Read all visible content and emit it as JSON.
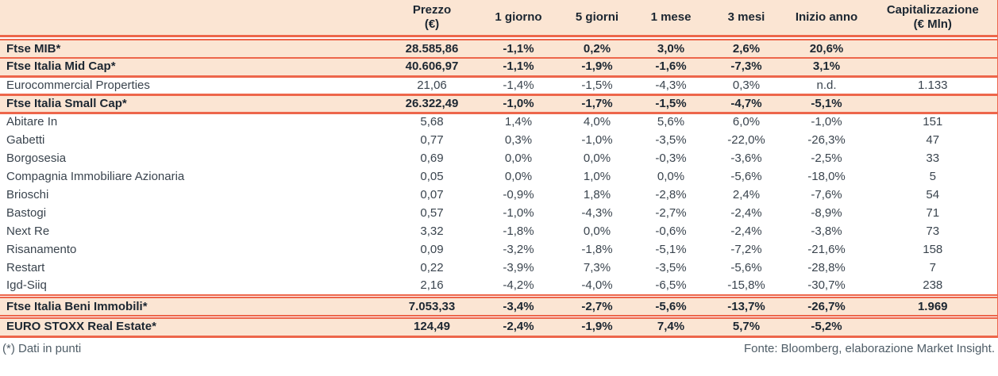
{
  "chart_data": {
    "type": "table",
    "columns": [
      {
        "label": "",
        "sublabel": ""
      },
      {
        "label": "Prezzo",
        "sublabel": "(€)"
      },
      {
        "label": "1 giorno",
        "sublabel": ""
      },
      {
        "label": "5 giorni",
        "sublabel": ""
      },
      {
        "label": "1 mese",
        "sublabel": ""
      },
      {
        "label": "3 mesi",
        "sublabel": ""
      },
      {
        "label": "Inizio anno",
        "sublabel": ""
      },
      {
        "label": "Capitalizzazione",
        "sublabel": "(€ Mln)"
      }
    ],
    "rows": [
      {
        "emphasis": true,
        "cells": [
          "Ftse MIB*",
          "28.585,86",
          "-1,1%",
          "0,2%",
          "3,0%",
          "2,6%",
          "20,6%",
          ""
        ]
      },
      {
        "emphasis": true,
        "cells": [
          "Ftse Italia Mid Cap*",
          "40.606,97",
          "-1,1%",
          "-1,9%",
          "-1,6%",
          "-7,3%",
          "3,1%",
          ""
        ]
      },
      {
        "emphasis": false,
        "cells": [
          "Eurocommercial Properties",
          "21,06",
          "-1,4%",
          "-1,5%",
          "-4,3%",
          "0,3%",
          "n.d.",
          "1.133"
        ]
      },
      {
        "emphasis": true,
        "cells": [
          "Ftse Italia Small Cap*",
          "26.322,49",
          "-1,0%",
          "-1,7%",
          "-1,5%",
          "-4,7%",
          "-5,1%",
          ""
        ]
      },
      {
        "emphasis": false,
        "cells": [
          "Abitare In",
          "5,68",
          "1,4%",
          "4,0%",
          "5,6%",
          "6,0%",
          "-1,0%",
          "151"
        ]
      },
      {
        "emphasis": false,
        "cells": [
          "Gabetti",
          "0,77",
          "0,3%",
          "-1,0%",
          "-3,5%",
          "-22,0%",
          "-26,3%",
          "47"
        ]
      },
      {
        "emphasis": false,
        "cells": [
          "Borgosesia",
          "0,69",
          "0,0%",
          "0,0%",
          "-0,3%",
          "-3,6%",
          "-2,5%",
          "33"
        ]
      },
      {
        "emphasis": false,
        "cells": [
          "Compagnia Immobiliare Azionaria",
          "0,05",
          "0,0%",
          "1,0%",
          "0,0%",
          "-5,6%",
          "-18,0%",
          "5"
        ]
      },
      {
        "emphasis": false,
        "cells": [
          "Brioschi",
          "0,07",
          "-0,9%",
          "1,8%",
          "-2,8%",
          "2,4%",
          "-7,6%",
          "54"
        ]
      },
      {
        "emphasis": false,
        "cells": [
          "Bastogi",
          "0,57",
          "-1,0%",
          "-4,3%",
          "-2,7%",
          "-2,4%",
          "-8,9%",
          "71"
        ]
      },
      {
        "emphasis": false,
        "cells": [
          "Next Re",
          "3,32",
          "-1,8%",
          "0,0%",
          "-0,6%",
          "-2,4%",
          "-3,8%",
          "73"
        ]
      },
      {
        "emphasis": false,
        "cells": [
          "Risanamento",
          "0,09",
          "-3,2%",
          "-1,8%",
          "-5,1%",
          "-7,2%",
          "-21,6%",
          "158"
        ]
      },
      {
        "emphasis": false,
        "cells": [
          "Restart",
          "0,22",
          "-3,9%",
          "7,3%",
          "-3,5%",
          "-5,6%",
          "-28,8%",
          "7"
        ]
      },
      {
        "emphasis": false,
        "cells": [
          "Igd-Siiq",
          "2,16",
          "-4,2%",
          "-4,0%",
          "-6,5%",
          "-15,8%",
          "-30,7%",
          "238"
        ]
      },
      {
        "emphasis": true,
        "cells": [
          "Ftse Italia Beni Immobili*",
          "7.053,33",
          "-3,4%",
          "-2,7%",
          "-5,6%",
          "-13,7%",
          "-26,7%",
          "1.969"
        ]
      },
      {
        "emphasis": true,
        "cells": [
          "EURO STOXX Real Estate*",
          "124,49",
          "-2,4%",
          "-1,9%",
          "7,4%",
          "5,7%",
          "-5,2%",
          ""
        ]
      }
    ],
    "footnote": "(*) Dati in punti",
    "source": "Fonte: Bloomberg, elaborazione Market Insight."
  },
  "colors": {
    "line_red": "#ed664b",
    "row_peach": "#fbe5d3",
    "header_text": "#1b2631",
    "body_text": "#3a444e",
    "footer_text": "#4e5c66"
  }
}
